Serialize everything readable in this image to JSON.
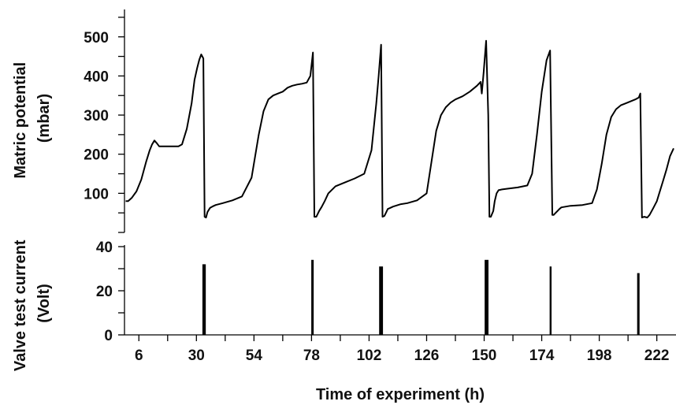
{
  "chart_data": [
    {
      "type": "line",
      "panel": "top",
      "ylabel_lines": [
        "Matric potential",
        "(mbar)"
      ],
      "ylim": [
        0,
        570
      ],
      "yticks": [
        100,
        200,
        300,
        400,
        500
      ],
      "ytick_labels": [
        "100",
        "200",
        "300",
        "400",
        "500"
      ],
      "xlim": [
        0,
        230
      ],
      "series": [
        {
          "x": [
            0.5,
            1.5,
            3,
            5,
            7,
            9,
            10.5,
            11.5,
            12.5,
            13.5,
            14.5,
            15.5,
            17,
            19,
            21,
            22.5,
            24,
            26,
            28,
            29.2,
            30.3,
            31.2,
            32,
            32.9,
            33.4,
            34.0,
            34.6,
            35.2,
            35.7,
            36.6,
            38,
            41,
            45,
            49,
            53,
            56,
            58,
            60,
            62,
            64,
            66,
            68,
            70,
            72,
            74,
            76,
            77.5,
            78.6,
            79.2,
            80.0,
            81.2,
            82.2,
            83.5,
            85,
            88,
            92,
            96,
            100,
            103,
            105,
            106,
            107,
            107.6,
            108.4,
            109.2,
            109.8,
            110.6,
            112,
            115,
            118,
            122,
            126,
            128,
            130,
            132,
            134,
            136,
            138,
            141,
            144,
            147,
            148.5,
            149,
            149.8,
            150.8,
            151.7,
            152.2,
            152.8,
            153.8,
            154.4,
            155.2,
            156,
            157.5,
            160,
            164,
            168,
            170,
            172,
            174,
            176,
            177.5,
            178.4,
            179,
            179.8,
            180.6,
            181.4,
            182.2,
            186,
            191,
            195,
            197,
            199,
            201,
            203,
            205,
            207,
            209,
            211,
            213,
            214.5,
            215.1,
            215.8,
            216.8,
            218,
            219,
            220.5,
            222,
            223,
            224.5,
            226,
            227.5,
            229
          ],
          "values": [
            80,
            80,
            88,
            105,
            135,
            180,
            210,
            225,
            235,
            228,
            220,
            220,
            220,
            220,
            220,
            220,
            225,
            265,
            330,
            390,
            420,
            442,
            455,
            445,
            40,
            38,
            52,
            58,
            63,
            66,
            70,
            75,
            82,
            92,
            140,
            250,
            310,
            340,
            350,
            355,
            360,
            370,
            375,
            378,
            380,
            383,
            400,
            460,
            40,
            40,
            55,
            65,
            80,
            100,
            118,
            128,
            138,
            150,
            210,
            330,
            400,
            480,
            40,
            42,
            52,
            60,
            62,
            66,
            72,
            75,
            82,
            100,
            180,
            260,
            300,
            320,
            332,
            340,
            348,
            360,
            375,
            385,
            355,
            410,
            490,
            300,
            40,
            40,
            55,
            80,
            100,
            108,
            110,
            112,
            115,
            120,
            150,
            250,
            360,
            440,
            465,
            45,
            45,
            50,
            55,
            60,
            64,
            68,
            70,
            75,
            110,
            175,
            250,
            295,
            315,
            325,
            330,
            335,
            340,
            345,
            355,
            38,
            40,
            38,
            45,
            62,
            80,
            100,
            130,
            160,
            195,
            215
          ]
        }
      ]
    },
    {
      "type": "bar",
      "panel": "bottom",
      "ylabel_lines": [
        "Valve test current",
        "(Volt)"
      ],
      "xlabel": "Time of experiment (h)",
      "ylim": [
        0,
        40
      ],
      "yticks": [
        0,
        20,
        40
      ],
      "ytick_labels": [
        "0",
        "20",
        "40"
      ],
      "xlim": [
        0,
        230
      ],
      "xticks": [
        6,
        30,
        54,
        78,
        102,
        126,
        150,
        174,
        198,
        222
      ],
      "xtick_labels": [
        "6",
        "30",
        "54",
        "78",
        "102",
        "126",
        "150",
        "174",
        "198",
        "222"
      ],
      "pulses": [
        {
          "x": 33.2,
          "width": 1.4,
          "value": 32
        },
        {
          "x": 78.4,
          "width": 1.0,
          "value": 34
        },
        {
          "x": 107.0,
          "width": 1.6,
          "value": 31
        },
        {
          "x": 151.0,
          "width": 1.6,
          "value": 34
        },
        {
          "x": 177.7,
          "width": 0.8,
          "value": 31
        },
        {
          "x": 214.3,
          "width": 1.0,
          "value": 28
        }
      ]
    }
  ]
}
